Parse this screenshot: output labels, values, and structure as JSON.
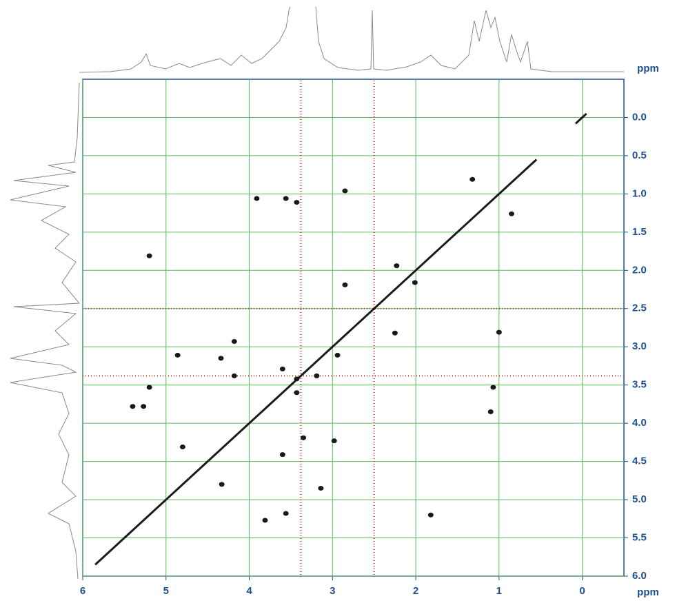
{
  "chart_data": {
    "type": "scatter",
    "xlabel": "ppm",
    "ylabel": "ppm",
    "xlim": [
      6,
      -0.5
    ],
    "ylim": [
      -0.5,
      6.0
    ],
    "xticks": [
      6,
      5,
      4,
      3,
      2,
      1,
      0
    ],
    "yticks": [
      {
        "value": 0,
        "label": "0.0"
      },
      {
        "value": 0.5,
        "label": "0.5"
      },
      {
        "value": 1,
        "label": "1.0"
      },
      {
        "value": 1.5,
        "label": "1.5"
      },
      {
        "value": 2,
        "label": "2.0"
      },
      {
        "value": 2.5,
        "label": "2.5"
      },
      {
        "value": 3,
        "label": "3.0"
      },
      {
        "value": 3.5,
        "label": "3.5"
      },
      {
        "value": 4,
        "label": "4.0"
      },
      {
        "value": 4.5,
        "label": "4.5"
      },
      {
        "value": 5,
        "label": "5.0"
      },
      {
        "value": 5.5,
        "label": "5.5"
      },
      {
        "value": 6,
        "label": "6.0"
      }
    ],
    "grid": true,
    "grid_color": "#5cb85c",
    "series": [
      {
        "color": "#1a1a1a",
        "x": [
          5.2,
          3.91,
          3.56,
          3.43,
          2.85,
          1.32,
          0.85,
          2.85,
          2.23,
          2.01,
          2.25,
          1.0,
          1.07,
          1.1,
          5.2,
          4.86,
          4.18,
          4.34,
          4.18,
          3.6,
          3.43,
          3.19,
          2.94,
          3.35,
          2.98,
          3.6,
          4.8,
          4.33,
          3.14,
          3.56,
          3.81,
          1.82,
          5.27,
          5.4,
          3.43
        ],
        "values": [
          1.81,
          1.06,
          1.06,
          1.11,
          0.96,
          0.81,
          1.26,
          2.19,
          1.94,
          2.16,
          2.82,
          2.81,
          3.53,
          3.85,
          3.53,
          3.11,
          2.93,
          3.15,
          3.38,
          3.29,
          3.42,
          3.38,
          3.11,
          4.19,
          4.23,
          4.41,
          4.31,
          4.8,
          4.85,
          5.18,
          5.27,
          5.2,
          3.78,
          3.78,
          3.6
        ]
      },
      {
        "color": "#1a1a1a",
        "line": true,
        "x": [
          5.85,
          0.55
        ],
        "values": [
          5.85,
          0.55
        ]
      },
      {
        "color": "#1a1a1a",
        "line": true,
        "x": [
          0.08,
          -0.05
        ],
        "values": [
          0.08,
          -0.05
        ]
      }
    ],
    "solvent_lines": [
      2.5,
      3.38
    ],
    "solvent_color": "#c0392b"
  }
}
